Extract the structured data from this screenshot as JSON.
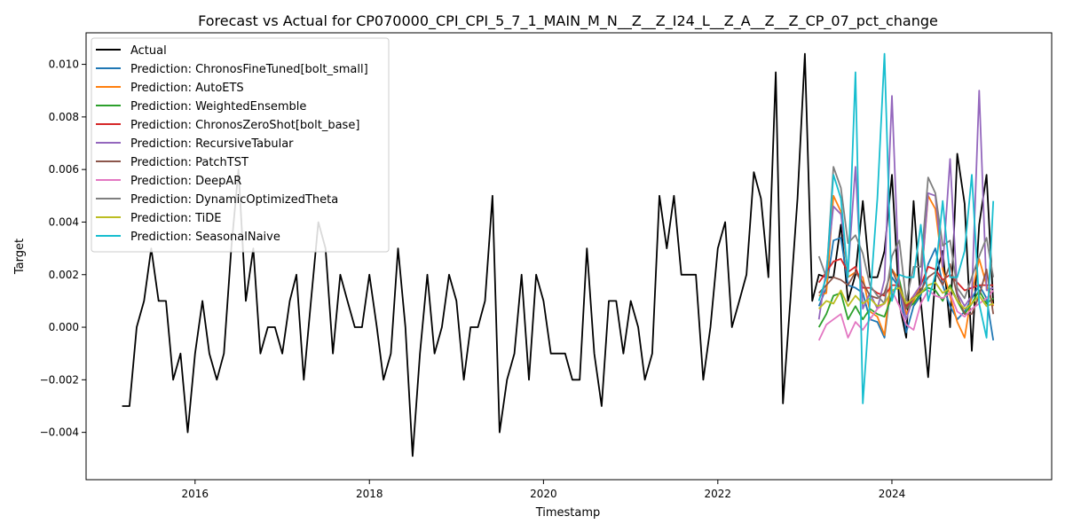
{
  "chart_data": {
    "type": "line",
    "title": "Forecast vs Actual for CP070000_CPI_CPI_5_7_1_MAIN_M_N__Z__Z_I24_L__Z_A__Z__Z_CP_07_pct_change",
    "xlabel": "Timestamp",
    "ylabel": "Target",
    "xlim": [
      "2014-10-01",
      "2025-11-01"
    ],
    "ylim": [
      -0.0058,
      0.0112
    ],
    "x_ticks": [
      "2016",
      "2018",
      "2020",
      "2022",
      "2024"
    ],
    "y_ticks": [
      "−0.004",
      "−0.002",
      "0.000",
      "0.002",
      "0.004",
      "0.006",
      "0.008",
      "0.010"
    ],
    "grid": false,
    "legend_position": "top-left",
    "forecast_dates": [
      "2023-03",
      "2023-04",
      "2023-05",
      "2023-06",
      "2023-07",
      "2023-08",
      "2023-09",
      "2023-10",
      "2023-11",
      "2023-12",
      "2024-01",
      "2024-02",
      "2024-03",
      "2024-04",
      "2024-05",
      "2024-06",
      "2024-07",
      "2024-08",
      "2024-09",
      "2024-10",
      "2024-11",
      "2024-12",
      "2025-01",
      "2025-02",
      "2025-03"
    ],
    "series": [
      {
        "name": "Actual",
        "color": "#000000",
        "start": "2015-03",
        "values": [
          -0.003,
          -0.003,
          0.0,
          0.001,
          0.003,
          0.001,
          0.001,
          -0.002,
          -0.001,
          -0.004,
          -0.001,
          0.001,
          -0.001,
          -0.002,
          -0.001,
          0.003,
          0.006,
          0.001,
          0.003,
          -0.001,
          0.0,
          0.0,
          -0.001,
          0.001,
          0.002,
          -0.002,
          0.001,
          0.004,
          0.003,
          -0.001,
          0.002,
          0.001,
          0.0,
          0.0,
          0.002,
          0.0,
          -0.002,
          -0.001,
          0.003,
          0.0,
          -0.0049,
          -0.001,
          0.002,
          -0.001,
          0.0,
          0.002,
          0.001,
          -0.002,
          0.0,
          0.0,
          0.001,
          0.005,
          -0.004,
          -0.002,
          -0.001,
          0.002,
          -0.002,
          0.002,
          0.001,
          -0.001,
          -0.001,
          -0.001,
          -0.002,
          -0.002,
          0.003,
          -0.001,
          -0.003,
          0.001,
          0.001,
          -0.001,
          0.001,
          0.0,
          -0.002,
          -0.001,
          0.005,
          0.003,
          0.005,
          0.002,
          0.002,
          0.002,
          -0.002,
          0.0,
          0.003,
          0.004,
          0.0,
          0.001,
          0.002,
          0.0059,
          0.0049,
          0.0019,
          0.0097,
          -0.0029,
          0.001,
          0.0049,
          0.0104,
          0.001,
          0.002,
          0.0019,
          0.0019,
          0.0039,
          0.001,
          0.002,
          0.0048,
          0.0019,
          0.0019,
          0.0029,
          0.0058,
          0.0009,
          -0.0004,
          0.0048,
          0.001,
          -0.0019,
          0.0019,
          0.0029,
          0.0,
          0.0066,
          0.0047,
          -0.0009,
          0.0039,
          0.0058,
          0.0009
        ]
      },
      {
        "name": "Prediction: ChronosFineTuned[bolt_small]",
        "color": "#1f77b4",
        "values": [
          0.0008,
          0.0015,
          0.0033,
          0.0034,
          0.0016,
          0.0015,
          0.0013,
          0.0003,
          0.0002,
          -0.0004,
          0.0019,
          0.0015,
          -0.0002,
          0.0008,
          0.0012,
          0.0024,
          0.003,
          0.0016,
          0.0008,
          0.0003,
          0.0006,
          0.0011,
          0.0016,
          0.0011,
          -0.0005
        ]
      },
      {
        "name": "Prediction: AutoETS",
        "color": "#ff7f0e",
        "values": [
          0.0012,
          0.0013,
          0.005,
          0.0044,
          0.0019,
          0.0021,
          0.0019,
          0.0006,
          0.0004,
          -0.0003,
          0.0022,
          0.0018,
          0.0005,
          0.001,
          0.0016,
          0.005,
          0.0045,
          0.0022,
          0.0012,
          0.0002,
          -0.0004,
          0.0013,
          0.0026,
          0.0016,
          0.0008
        ]
      },
      {
        "name": "Prediction: WeightedEnsemble",
        "color": "#2ca02c",
        "values": [
          0.0,
          0.0005,
          0.0012,
          0.0013,
          0.0003,
          0.0008,
          0.0003,
          0.0007,
          0.0005,
          0.0004,
          0.0012,
          0.0018,
          0.0007,
          0.0009,
          0.0013,
          0.0015,
          0.0014,
          0.001,
          0.0016,
          0.001,
          0.0005,
          0.0009,
          0.0014,
          0.0009,
          0.0011
        ]
      },
      {
        "name": "Prediction: ChronosZeroShot[bolt_base]",
        "color": "#d62728",
        "values": [
          0.0017,
          0.0021,
          0.0025,
          0.0026,
          0.0021,
          0.0023,
          0.0015,
          0.0015,
          0.0013,
          0.0012,
          0.0016,
          0.0016,
          0.0008,
          0.0012,
          0.0016,
          0.0023,
          0.0022,
          0.0018,
          0.002,
          0.0017,
          0.0014,
          0.0015,
          0.0016,
          0.0016,
          0.0016
        ]
      },
      {
        "name": "Prediction: RecursiveTabular",
        "color": "#9467bd",
        "values": [
          0.0003,
          0.0022,
          0.0046,
          0.0043,
          0.0021,
          0.0061,
          0.0007,
          0.0013,
          0.0007,
          0.0018,
          0.0088,
          0.0015,
          0.0003,
          0.0012,
          0.0016,
          0.0051,
          0.005,
          0.0023,
          0.0064,
          0.0013,
          0.0008,
          0.0012,
          0.009,
          0.0014,
          0.0015
        ]
      },
      {
        "name": "Prediction: PatchTST",
        "color": "#8c564b",
        "values": [
          0.0013,
          0.0016,
          0.0019,
          0.0018,
          0.0016,
          0.0021,
          0.0017,
          0.0012,
          0.0011,
          0.0013,
          0.0022,
          0.0015,
          0.0007,
          0.0011,
          0.0014,
          0.0019,
          0.0021,
          0.0016,
          0.0024,
          0.0012,
          0.0005,
          0.0005,
          0.0012,
          0.0022,
          0.0005
        ]
      },
      {
        "name": "Prediction: DeepAR",
        "color": "#e377c2",
        "values": [
          -0.0005,
          0.0001,
          0.0003,
          0.0005,
          -0.0004,
          0.0002,
          -0.0001,
          0.0003,
          0.0007,
          0.0009,
          0.0014,
          0.0008,
          0.0001,
          -0.0001,
          0.0009,
          0.0014,
          0.0012,
          0.0011,
          0.0013,
          0.0006,
          0.0004,
          0.0007,
          0.0009,
          0.0011,
          0.0014
        ]
      },
      {
        "name": "Prediction: DynamicOptimizedTheta",
        "color": "#7f7f7f",
        "values": [
          0.0027,
          0.0019,
          0.0061,
          0.0053,
          0.0032,
          0.0035,
          0.0028,
          0.0016,
          0.0012,
          0.0009,
          0.0027,
          0.0033,
          0.001,
          0.0023,
          0.0023,
          0.0057,
          0.0051,
          0.0031,
          0.0033,
          0.0015,
          0.0011,
          0.0019,
          0.0027,
          0.0034,
          0.0019
        ]
      },
      {
        "name": "Prediction: TiDE",
        "color": "#bcbd22",
        "values": [
          0.0007,
          0.001,
          0.0009,
          0.0014,
          0.0008,
          0.0012,
          0.0009,
          0.0011,
          0.0008,
          0.0009,
          0.0014,
          0.0015,
          0.0009,
          0.0011,
          0.0013,
          0.0016,
          0.0017,
          0.0013,
          0.0015,
          0.001,
          0.0007,
          0.0009,
          0.0012,
          0.0008,
          0.0009
        ]
      },
      {
        "name": "Prediction: SeasonalNaive",
        "color": "#17becf",
        "values": [
          0.001,
          0.0019,
          0.0058,
          0.0049,
          0.0019,
          0.0097,
          -0.0029,
          0.001,
          0.0049,
          0.0104,
          0.001,
          0.002,
          0.0019,
          0.0019,
          0.0039,
          0.001,
          0.002,
          0.0048,
          0.0019,
          0.0019,
          0.0029,
          0.0058,
          0.0009,
          -0.0004,
          0.0048
        ]
      }
    ]
  }
}
